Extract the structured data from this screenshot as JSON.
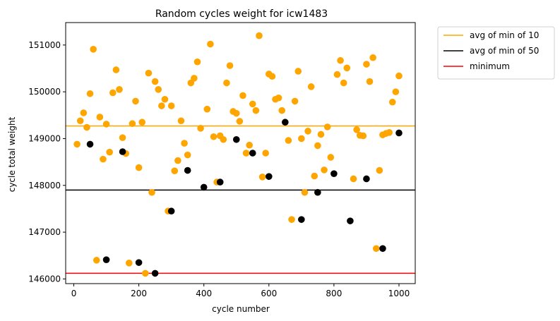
{
  "chart_data": {
    "type": "scatter",
    "title": "Random cycles weight for icw1483",
    "xlabel": "cycle number",
    "ylabel": "cycle total weight",
    "xlim": [
      -25,
      1050
    ],
    "ylim": [
      145900,
      151480
    ],
    "xticks": [
      0,
      200,
      400,
      600,
      800,
      1000
    ],
    "yticks": [
      146000,
      147000,
      148000,
      149000,
      150000,
      151000
    ],
    "grid": false,
    "legend_position": "outside-top-right",
    "colors": {
      "orange": "#ffa500",
      "black": "#000000",
      "red": "#ff0000"
    },
    "series": [
      {
        "color": "#ffa500",
        "points": [
          [
            10,
            148880
          ],
          [
            20,
            149380
          ],
          [
            30,
            149550
          ],
          [
            40,
            149240
          ],
          [
            50,
            149960
          ],
          [
            60,
            150910
          ],
          [
            70,
            146400
          ],
          [
            80,
            149460
          ],
          [
            90,
            148560
          ],
          [
            100,
            149310
          ],
          [
            110,
            148710
          ],
          [
            120,
            149980
          ],
          [
            130,
            150470
          ],
          [
            140,
            150050
          ],
          [
            150,
            149020
          ],
          [
            160,
            148680
          ],
          [
            170,
            146340
          ],
          [
            180,
            149320
          ],
          [
            190,
            149800
          ],
          [
            200,
            148380
          ],
          [
            210,
            149350
          ],
          [
            220,
            146120
          ],
          [
            230,
            150400
          ],
          [
            240,
            147850
          ],
          [
            250,
            150220
          ],
          [
            260,
            150050
          ],
          [
            270,
            149700
          ],
          [
            280,
            149840
          ],
          [
            290,
            147450
          ],
          [
            300,
            149700
          ],
          [
            310,
            148310
          ],
          [
            320,
            148530
          ],
          [
            330,
            149380
          ],
          [
            340,
            148900
          ],
          [
            350,
            148650
          ],
          [
            360,
            150190
          ],
          [
            370,
            150290
          ],
          [
            380,
            150640
          ],
          [
            390,
            149220
          ],
          [
            410,
            149630
          ],
          [
            420,
            151020
          ],
          [
            430,
            149040
          ],
          [
            440,
            148070
          ],
          [
            450,
            149060
          ],
          [
            460,
            148980
          ],
          [
            470,
            150190
          ],
          [
            480,
            150560
          ],
          [
            490,
            149580
          ],
          [
            500,
            149540
          ],
          [
            510,
            149370
          ],
          [
            520,
            149920
          ],
          [
            530,
            148690
          ],
          [
            540,
            148860
          ],
          [
            550,
            149740
          ],
          [
            560,
            149600
          ],
          [
            570,
            151200
          ],
          [
            580,
            148180
          ],
          [
            590,
            148690
          ],
          [
            600,
            150380
          ],
          [
            610,
            150330
          ],
          [
            620,
            149840
          ],
          [
            630,
            149870
          ],
          [
            640,
            149600
          ],
          [
            660,
            148960
          ],
          [
            670,
            147270
          ],
          [
            680,
            149800
          ],
          [
            690,
            150440
          ],
          [
            700,
            149000
          ],
          [
            710,
            147850
          ],
          [
            720,
            149160
          ],
          [
            730,
            150110
          ],
          [
            740,
            148200
          ],
          [
            750,
            148850
          ],
          [
            760,
            149090
          ],
          [
            770,
            148330
          ],
          [
            780,
            149250
          ],
          [
            790,
            148600
          ],
          [
            810,
            150370
          ],
          [
            820,
            150670
          ],
          [
            830,
            150190
          ],
          [
            840,
            150510
          ],
          [
            860,
            148140
          ],
          [
            870,
            149190
          ],
          [
            880,
            149070
          ],
          [
            890,
            149060
          ],
          [
            900,
            150590
          ],
          [
            910,
            150220
          ],
          [
            920,
            150730
          ],
          [
            930,
            146650
          ],
          [
            940,
            148320
          ],
          [
            950,
            149080
          ],
          [
            960,
            149110
          ],
          [
            970,
            149130
          ],
          [
            980,
            149780
          ],
          [
            990,
            150000
          ],
          [
            1000,
            150340
          ]
        ]
      },
      {
        "color": "#000000",
        "points": [
          [
            50,
            148880
          ],
          [
            100,
            146410
          ],
          [
            150,
            148720
          ],
          [
            200,
            146350
          ],
          [
            250,
            146120
          ],
          [
            300,
            147450
          ],
          [
            350,
            148320
          ],
          [
            400,
            147960
          ],
          [
            450,
            148070
          ],
          [
            500,
            148980
          ],
          [
            550,
            148690
          ],
          [
            600,
            148190
          ],
          [
            650,
            149350
          ],
          [
            700,
            147270
          ],
          [
            750,
            147850
          ],
          [
            800,
            148250
          ],
          [
            850,
            147240
          ],
          [
            900,
            148140
          ],
          [
            950,
            146650
          ],
          [
            1000,
            149120
          ]
        ]
      }
    ],
    "hlines": [
      {
        "name": "avg of min of 10",
        "y": 149270,
        "color": "#ffa500"
      },
      {
        "name": "avg of min of 50",
        "y": 147900,
        "color": "#000000"
      },
      {
        "name": "minimum",
        "y": 146120,
        "color": "#ff0000"
      }
    ]
  }
}
